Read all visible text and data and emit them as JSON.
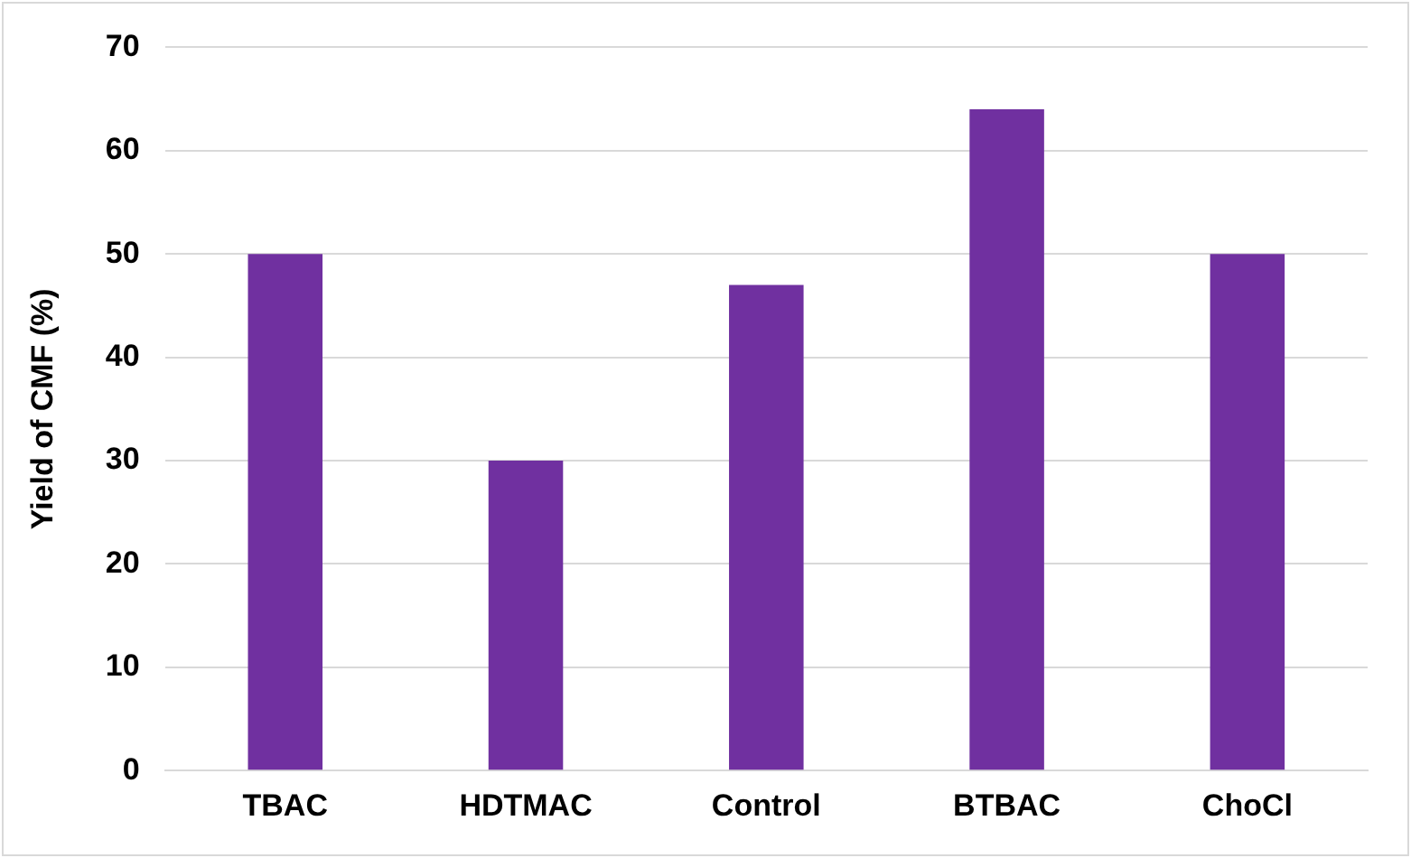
{
  "chart_data": {
    "type": "bar",
    "ylabel": "Yield of CMF (%)",
    "categories": [
      "TBAC",
      "HDTMAC",
      "Control",
      "BTBAC",
      "ChoCl"
    ],
    "values": [
      50,
      30,
      47,
      64,
      50
    ],
    "color": "#7030a0",
    "ylim": [
      0,
      70
    ],
    "yticks": [
      0,
      10,
      20,
      30,
      40,
      50,
      60,
      70
    ],
    "grid": "y"
  }
}
